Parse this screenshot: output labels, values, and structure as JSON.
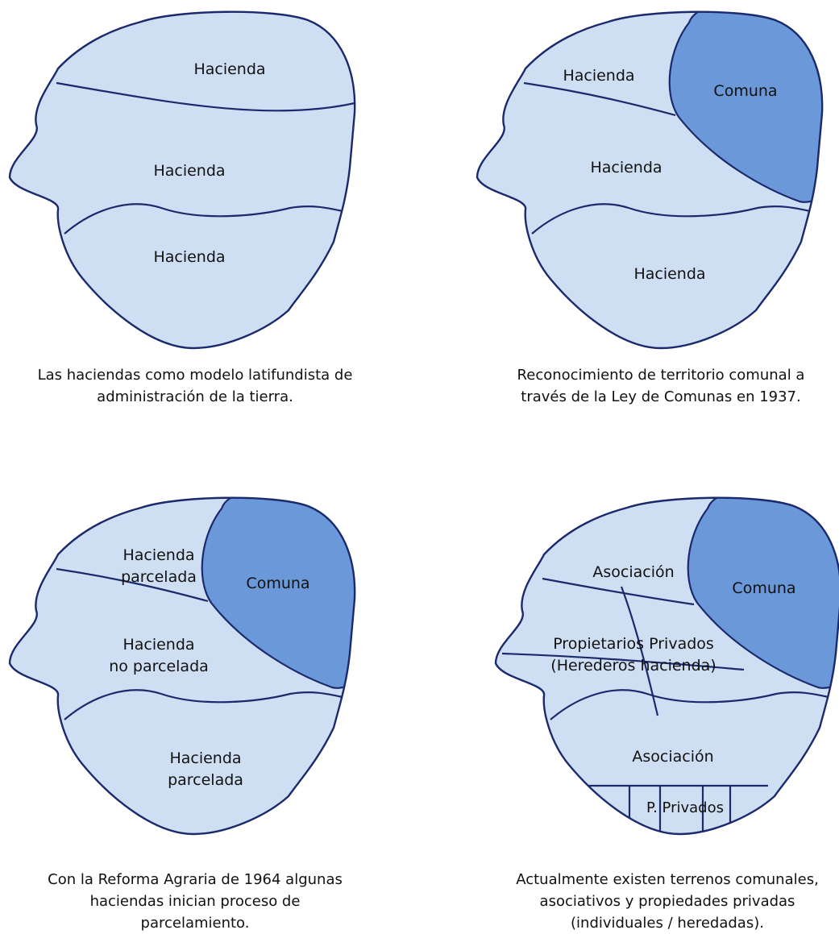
{
  "colors": {
    "region_fill": "#cfdff3",
    "comuna_fill": "#6a98d8",
    "outline": "#1a2a6c",
    "text": "#111111"
  },
  "panel1": {
    "labels": {
      "top": "Hacienda",
      "middle": "Hacienda",
      "bottom": "Hacienda"
    },
    "caption": "Las haciendas como modelo latifundista de administración de la tierra."
  },
  "panel2": {
    "labels": {
      "top": "Hacienda",
      "comuna": "Comuna",
      "middle": "Hacienda",
      "bottom": "Hacienda"
    },
    "caption": "Reconocimiento de territorio comunal a través de la Ley de Comunas en 1937."
  },
  "panel3": {
    "labels": {
      "top_line1": "Hacienda",
      "top_line2": "parcelada",
      "comuna": "Comuna",
      "middle_line1": "Hacienda",
      "middle_line2": "no parcelada",
      "bottom_line1": "Hacienda",
      "bottom_line2": "parcelada"
    },
    "caption": "Con la Reforma Agraria de 1964 algunas haciendas inician proceso de parcelamiento."
  },
  "panel4": {
    "labels": {
      "top": "Asociación",
      "comuna": "Comuna",
      "middle_line1": "Propietarios Privados",
      "middle_line2": "(Herederos hacienda)",
      "bottom": "Asociación",
      "small": "P. Privados"
    },
    "caption": "Actualmente existen terrenos comunales, asociativos y propiedades privadas (individuales / heredadas)."
  }
}
